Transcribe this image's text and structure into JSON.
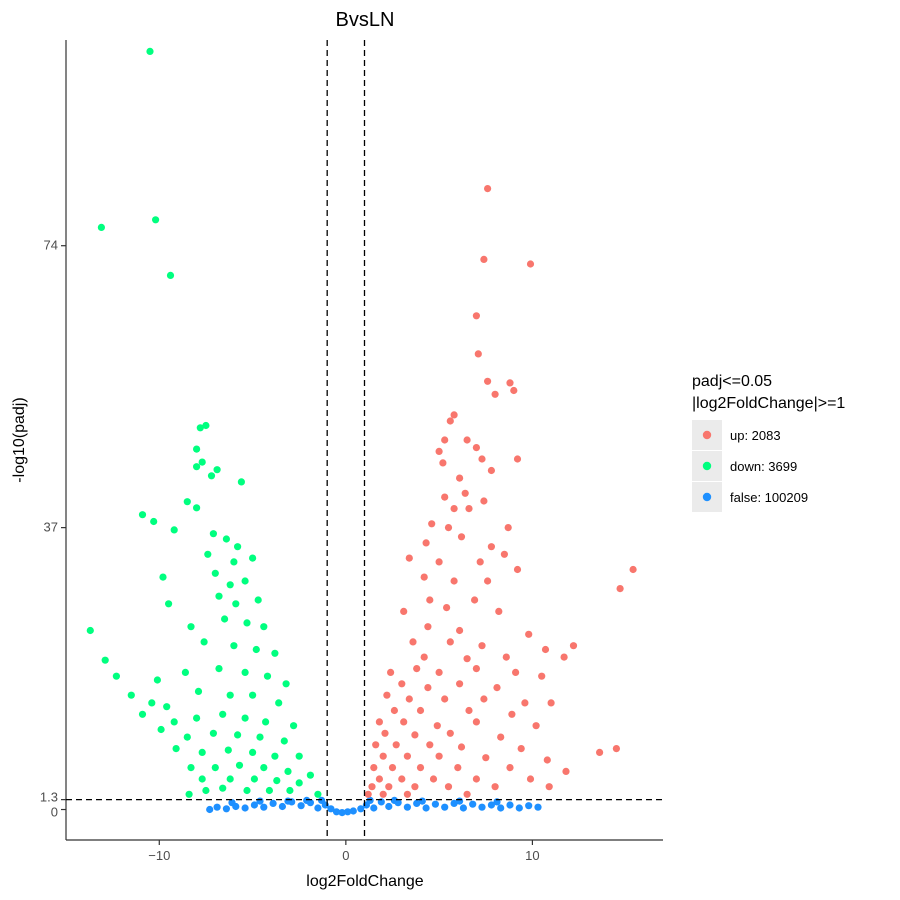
{
  "chart_data": {
    "type": "scatter",
    "title": "BvsLN",
    "xlabel": "log2FoldChange",
    "ylabel": "-log10(padj)",
    "xlim": [
      -15,
      17
    ],
    "ylim": [
      -4,
      101
    ],
    "x_ticks": [
      {
        "value": -10,
        "label": "−10"
      },
      {
        "value": 0,
        "label": "0"
      },
      {
        "value": 10,
        "label": "10"
      }
    ],
    "y_ticks": [
      {
        "value": 0,
        "label": "0"
      },
      {
        "value": 1.3,
        "label": "1.3"
      },
      {
        "value": 37,
        "label": "37"
      },
      {
        "value": 74,
        "label": "74"
      }
    ],
    "thresholds": {
      "x": [
        -1,
        1
      ],
      "y": 1.3
    },
    "grid": false,
    "legend": {
      "title_line1": "padj<=0.05",
      "title_line2": "|log2FoldChange|>=1",
      "placement": "right"
    },
    "series": [
      {
        "name": "up: 2083",
        "color": "#F8766D",
        "points": [
          [
            7.6,
            81.5
          ],
          [
            7.4,
            72.2
          ],
          [
            9.9,
            71.6
          ],
          [
            7.0,
            64.8
          ],
          [
            7.1,
            59.8
          ],
          [
            7.6,
            56.2
          ],
          [
            8.8,
            56.0
          ],
          [
            9.0,
            55.0
          ],
          [
            8.0,
            54.5
          ],
          [
            5.8,
            51.8
          ],
          [
            5.6,
            51.0
          ],
          [
            5.3,
            48.5
          ],
          [
            6.5,
            48.5
          ],
          [
            7.0,
            47.5
          ],
          [
            5.0,
            47.0
          ],
          [
            5.2,
            45.5
          ],
          [
            7.3,
            46.0
          ],
          [
            9.2,
            46.0
          ],
          [
            7.8,
            44.5
          ],
          [
            6.1,
            43.5
          ],
          [
            5.3,
            41.0
          ],
          [
            6.4,
            41.5
          ],
          [
            7.4,
            40.5
          ],
          [
            5.8,
            39.5
          ],
          [
            6.6,
            39.5
          ],
          [
            4.6,
            37.5
          ],
          [
            5.5,
            37.0
          ],
          [
            8.7,
            37.0
          ],
          [
            4.3,
            35.0
          ],
          [
            6.2,
            35.8
          ],
          [
            7.8,
            34.5
          ],
          [
            8.5,
            33.5
          ],
          [
            3.4,
            33.0
          ],
          [
            5.0,
            32.5
          ],
          [
            7.2,
            32.5
          ],
          [
            9.2,
            31.5
          ],
          [
            4.2,
            30.5
          ],
          [
            5.8,
            30.0
          ],
          [
            7.6,
            30.0
          ],
          [
            15.4,
            31.5
          ],
          [
            14.7,
            29.0
          ],
          [
            4.5,
            27.5
          ],
          [
            6.9,
            27.5
          ],
          [
            3.1,
            26.0
          ],
          [
            5.4,
            26.5
          ],
          [
            8.2,
            26.0
          ],
          [
            4.4,
            24.0
          ],
          [
            6.1,
            23.5
          ],
          [
            9.8,
            23.0
          ],
          [
            3.6,
            22.0
          ],
          [
            5.6,
            22.0
          ],
          [
            7.3,
            21.5
          ],
          [
            10.7,
            21.0
          ],
          [
            12.2,
            21.5
          ],
          [
            4.2,
            20.0
          ],
          [
            6.5,
            19.8
          ],
          [
            8.6,
            20.0
          ],
          [
            11.7,
            20.0
          ],
          [
            2.4,
            18.0
          ],
          [
            3.8,
            18.5
          ],
          [
            5.0,
            18.0
          ],
          [
            7.0,
            18.5
          ],
          [
            9.1,
            18.0
          ],
          [
            10.5,
            17.5
          ],
          [
            3.0,
            16.5
          ],
          [
            4.4,
            16.0
          ],
          [
            6.1,
            16.5
          ],
          [
            8.1,
            16.0
          ],
          [
            2.2,
            15.0
          ],
          [
            3.4,
            14.5
          ],
          [
            5.3,
            14.5
          ],
          [
            7.4,
            14.5
          ],
          [
            9.6,
            14.0
          ],
          [
            11.0,
            14.0
          ],
          [
            2.6,
            13.0
          ],
          [
            4.0,
            13.0
          ],
          [
            6.6,
            13.0
          ],
          [
            8.9,
            12.5
          ],
          [
            1.8,
            11.5
          ],
          [
            3.1,
            11.5
          ],
          [
            4.9,
            11.0
          ],
          [
            7.0,
            11.5
          ],
          [
            10.2,
            11.0
          ],
          [
            2.1,
            10.0
          ],
          [
            3.7,
            9.8
          ],
          [
            5.6,
            10.0
          ],
          [
            8.3,
            9.5
          ],
          [
            1.6,
            8.5
          ],
          [
            2.7,
            8.5
          ],
          [
            4.5,
            8.5
          ],
          [
            6.2,
            8.2
          ],
          [
            9.4,
            8.0
          ],
          [
            14.5,
            8.0
          ],
          [
            13.6,
            7.5
          ],
          [
            2.0,
            7.0
          ],
          [
            3.3,
            7.0
          ],
          [
            5.0,
            7.0
          ],
          [
            7.5,
            6.8
          ],
          [
            10.8,
            6.5
          ],
          [
            1.5,
            5.5
          ],
          [
            2.5,
            5.5
          ],
          [
            4.0,
            5.5
          ],
          [
            6.0,
            5.5
          ],
          [
            8.8,
            5.5
          ],
          [
            11.8,
            5.0
          ],
          [
            1.8,
            4.0
          ],
          [
            3.0,
            4.0
          ],
          [
            4.7,
            4.0
          ],
          [
            7.0,
            4.0
          ],
          [
            9.9,
            4.0
          ],
          [
            1.4,
            3.0
          ],
          [
            2.3,
            3.0
          ],
          [
            3.7,
            3.0
          ],
          [
            5.5,
            3.0
          ],
          [
            8.0,
            3.0
          ],
          [
            10.9,
            3.0
          ],
          [
            1.2,
            2.0
          ],
          [
            2.0,
            2.0
          ],
          [
            3.3,
            2.0
          ],
          [
            6.5,
            2.0
          ]
        ]
      },
      {
        "name": "down: 3699",
        "color": "#00FF7F",
        "points": [
          [
            -10.5,
            99.5
          ],
          [
            -13.1,
            76.4
          ],
          [
            -10.2,
            77.4
          ],
          [
            -9.4,
            70.1
          ],
          [
            -7.5,
            50.4
          ],
          [
            -7.8,
            50.1
          ],
          [
            -8.0,
            47.3
          ],
          [
            -7.7,
            45.6
          ],
          [
            -8.0,
            45.0
          ],
          [
            -6.9,
            44.6
          ],
          [
            -7.2,
            43.8
          ],
          [
            -5.6,
            43.0
          ],
          [
            -8.5,
            40.4
          ],
          [
            -8.0,
            39.6
          ],
          [
            -10.9,
            38.7
          ],
          [
            -10.3,
            37.8
          ],
          [
            -9.2,
            36.7
          ],
          [
            -7.1,
            36.2
          ],
          [
            -6.4,
            35.5
          ],
          [
            -5.8,
            34.5
          ],
          [
            -7.4,
            33.5
          ],
          [
            -6.0,
            32.5
          ],
          [
            -5.0,
            33.0
          ],
          [
            -9.8,
            30.5
          ],
          [
            -7.0,
            31.0
          ],
          [
            -6.2,
            29.5
          ],
          [
            -5.4,
            30.0
          ],
          [
            -9.5,
            27.0
          ],
          [
            -6.8,
            28.0
          ],
          [
            -5.9,
            27.0
          ],
          [
            -4.7,
            27.5
          ],
          [
            -13.7,
            23.5
          ],
          [
            -8.3,
            24.0
          ],
          [
            -6.5,
            25.0
          ],
          [
            -5.3,
            24.5
          ],
          [
            -4.4,
            24.0
          ],
          [
            -12.9,
            19.6
          ],
          [
            -7.6,
            22.0
          ],
          [
            -6.0,
            21.5
          ],
          [
            -4.8,
            21.0
          ],
          [
            -3.8,
            20.5
          ],
          [
            -12.3,
            17.5
          ],
          [
            -10.1,
            17.0
          ],
          [
            -8.6,
            18.0
          ],
          [
            -6.8,
            18.5
          ],
          [
            -5.4,
            18.0
          ],
          [
            -4.2,
            17.5
          ],
          [
            -3.2,
            16.5
          ],
          [
            -11.5,
            15.0
          ],
          [
            -10.4,
            14.0
          ],
          [
            -9.6,
            13.5
          ],
          [
            -7.9,
            15.5
          ],
          [
            -6.2,
            15.0
          ],
          [
            -5.0,
            15.0
          ],
          [
            -3.6,
            14.0
          ],
          [
            -10.9,
            12.5
          ],
          [
            -9.2,
            11.5
          ],
          [
            -8.0,
            12.0
          ],
          [
            -6.6,
            12.5
          ],
          [
            -5.4,
            12.0
          ],
          [
            -4.3,
            11.5
          ],
          [
            -2.8,
            11.0
          ],
          [
            -9.9,
            10.5
          ],
          [
            -8.5,
            9.5
          ],
          [
            -7.1,
            10.0
          ],
          [
            -5.8,
            9.8
          ],
          [
            -4.6,
            9.5
          ],
          [
            -3.3,
            9.0
          ],
          [
            -9.1,
            8.0
          ],
          [
            -7.7,
            7.5
          ],
          [
            -6.3,
            7.8
          ],
          [
            -5.0,
            7.5
          ],
          [
            -3.8,
            7.0
          ],
          [
            -2.5,
            7.0
          ],
          [
            -8.3,
            5.5
          ],
          [
            -7.0,
            5.5
          ],
          [
            -5.7,
            5.8
          ],
          [
            -4.4,
            5.5
          ],
          [
            -3.1,
            5.0
          ],
          [
            -1.9,
            4.5
          ],
          [
            -7.7,
            4.0
          ],
          [
            -6.2,
            4.0
          ],
          [
            -4.9,
            4.0
          ],
          [
            -3.7,
            3.8
          ],
          [
            -2.5,
            3.5
          ],
          [
            -8.4,
            2.0
          ],
          [
            -7.5,
            2.5
          ],
          [
            -6.6,
            2.8
          ],
          [
            -5.3,
            2.5
          ],
          [
            -4.1,
            2.5
          ],
          [
            -3.0,
            2.5
          ],
          [
            -1.5,
            2.0
          ]
        ]
      },
      {
        "name": "false: 100209",
        "color": "#1E90FF",
        "points": [
          [
            -7.3,
            0.0
          ],
          [
            -6.9,
            0.3
          ],
          [
            -6.4,
            0.1
          ],
          [
            -5.9,
            0.4
          ],
          [
            -5.4,
            0.2
          ],
          [
            -4.9,
            0.6
          ],
          [
            -4.4,
            0.3
          ],
          [
            -3.9,
            0.8
          ],
          [
            -3.4,
            0.4
          ],
          [
            -2.9,
            1.0
          ],
          [
            -2.4,
            0.5
          ],
          [
            -1.9,
            0.9
          ],
          [
            -1.5,
            0.2
          ],
          [
            -1.1,
            0.6
          ],
          [
            -0.8,
            0.1
          ],
          [
            -0.5,
            -0.3
          ],
          [
            -0.2,
            -0.4
          ],
          [
            0.1,
            -0.3
          ],
          [
            0.4,
            -0.2
          ],
          [
            0.8,
            0.1
          ],
          [
            1.1,
            0.6
          ],
          [
            1.5,
            0.2
          ],
          [
            1.9,
            1.0
          ],
          [
            2.3,
            0.4
          ],
          [
            2.8,
            0.9
          ],
          [
            3.3,
            0.3
          ],
          [
            3.8,
            0.8
          ],
          [
            4.3,
            0.2
          ],
          [
            4.8,
            0.7
          ],
          [
            5.3,
            0.3
          ],
          [
            5.8,
            0.8
          ],
          [
            6.3,
            0.2
          ],
          [
            6.8,
            0.7
          ],
          [
            7.3,
            0.3
          ],
          [
            7.8,
            0.6
          ],
          [
            8.3,
            0.2
          ],
          [
            8.8,
            0.6
          ],
          [
            9.3,
            0.2
          ],
          [
            9.8,
            0.5
          ],
          [
            10.3,
            0.3
          ],
          [
            -6.1,
            0.9
          ],
          [
            -4.6,
            1.1
          ],
          [
            -3.1,
            1.1
          ],
          [
            -2.1,
            1.2
          ],
          [
            2.6,
            1.2
          ],
          [
            4.1,
            1.1
          ],
          [
            6.1,
            1.1
          ],
          [
            8.1,
            1.0
          ],
          [
            -1.3,
            1.2
          ],
          [
            1.3,
            1.2
          ]
        ]
      }
    ]
  }
}
